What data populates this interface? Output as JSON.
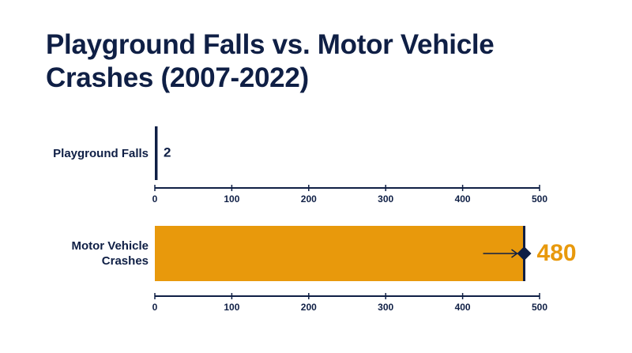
{
  "chart_data": {
    "type": "bar",
    "orientation": "horizontal",
    "title": "Playground Falls vs. Motor Vehicle Crashes (2007-2022)",
    "categories": [
      "Playground Falls",
      "Motor Vehicle Crashes"
    ],
    "values": [
      2,
      480
    ],
    "colors": [
      "#0f1f45",
      "#e8990c"
    ],
    "xlim": [
      0,
      500
    ],
    "xticks": [
      0,
      100,
      200,
      300,
      400,
      500
    ]
  }
}
